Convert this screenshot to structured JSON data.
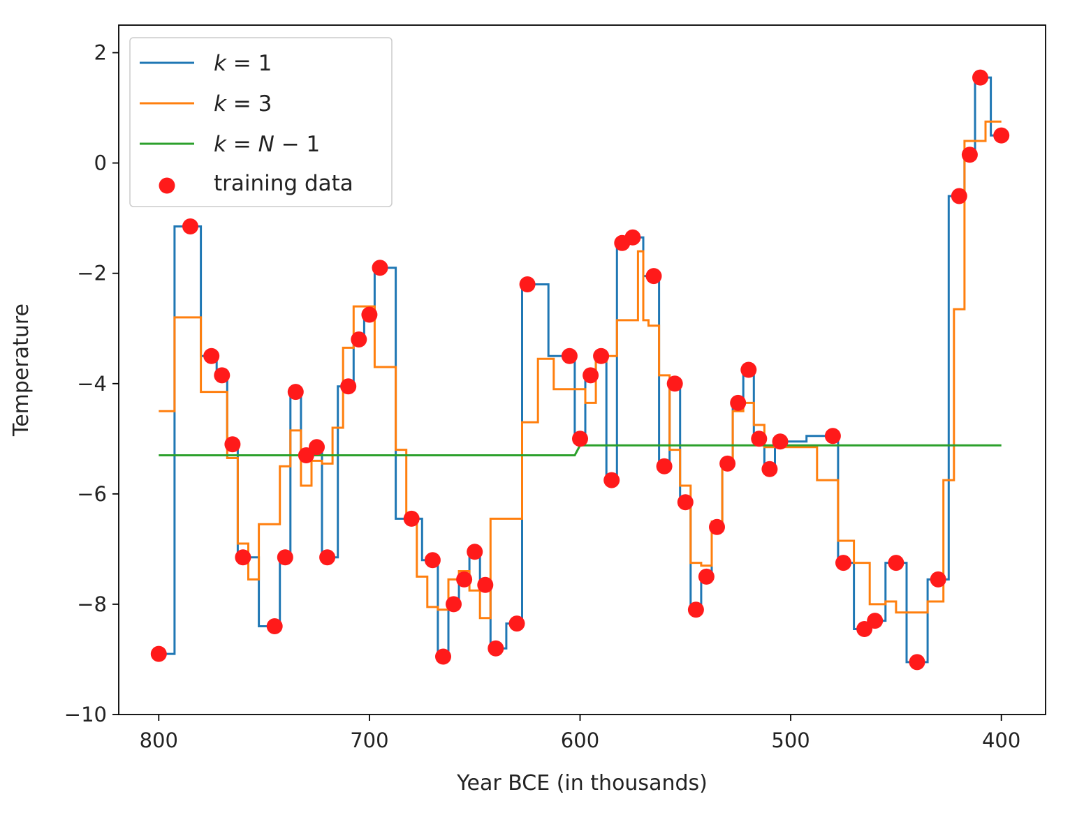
{
  "chart_data": {
    "type": "line",
    "xlabel": "Year BCE (in thousands)",
    "ylabel": "Temperature",
    "xlim": [
      819,
      379
    ],
    "ylim": [
      -10,
      2.5
    ],
    "x_reversed": true,
    "xticks": [
      800,
      700,
      600,
      500,
      400
    ],
    "xtick_labels": [
      "800",
      "700",
      "600",
      "500",
      "400"
    ],
    "yticks": [
      2,
      0,
      -2,
      -4,
      -6,
      -8,
      -10
    ],
    "ytick_labels": [
      "2",
      "0",
      "−2",
      "−4",
      "−6",
      "−8",
      "−10"
    ],
    "legend_position": "top-left",
    "legend": [
      {
        "prefix": "k",
        "eq": " = ",
        "suffix": "1",
        "color": "#1f77b4",
        "marker": "line"
      },
      {
        "prefix": "k",
        "eq": " = ",
        "suffix": "3",
        "color": "#ff7f0e",
        "marker": "line"
      },
      {
        "prefix": "k",
        "eq": " = ",
        "suffix": "N − 1",
        "color": "#2ca02c",
        "marker": "line"
      },
      {
        "prefix": "",
        "eq": "",
        "suffix": "training data",
        "color": "#ff1a1a",
        "marker": "dot"
      }
    ],
    "training_data": {
      "name": "training data",
      "color": "#ff1a1a",
      "x": [
        800,
        785,
        775,
        770,
        765,
        760,
        745,
        740,
        735,
        730,
        725,
        720,
        710,
        705,
        700,
        695,
        680,
        670,
        665,
        660,
        655,
        650,
        645,
        640,
        630,
        625,
        605,
        600,
        595,
        590,
        585,
        580,
        575,
        565,
        560,
        555,
        550,
        545,
        540,
        535,
        530,
        525,
        520,
        515,
        510,
        505,
        480,
        475,
        465,
        460,
        450,
        440,
        430,
        420,
        415,
        410,
        400
      ],
      "y": [
        -8.9,
        -1.15,
        -3.5,
        -3.85,
        -5.1,
        -7.15,
        -8.4,
        -7.15,
        -4.15,
        -5.3,
        -5.15,
        -7.15,
        -4.05,
        -3.2,
        -2.75,
        -1.9,
        -6.45,
        -7.2,
        -8.95,
        -8.0,
        -7.55,
        -7.05,
        -7.65,
        -8.8,
        -8.35,
        -2.2,
        -3.5,
        -5.0,
        -3.85,
        -3.5,
        -5.75,
        -1.45,
        -1.35,
        -2.05,
        -5.5,
        -4.0,
        -6.15,
        -8.1,
        -7.5,
        -6.6,
        -5.45,
        -4.35,
        -3.75,
        -5.0,
        -5.55,
        -5.05,
        -4.95,
        -7.25,
        -8.45,
        -8.3,
        -7.25,
        -9.05,
        -7.55,
        -0.6,
        0.15,
        1.55,
        0.5
      ]
    },
    "series": [
      {
        "name": "k = 1",
        "color": "#1f77b4",
        "x": [
          800,
          792.5,
          792.5,
          780,
          780,
          772.5,
          772.5,
          767.5,
          767.5,
          762.5,
          762.5,
          752.5,
          752.5,
          742.5,
          742.5,
          737.5,
          737.5,
          732.5,
          732.5,
          727.5,
          727.5,
          722.5,
          722.5,
          715,
          715,
          707.5,
          707.5,
          702.5,
          702.5,
          697.5,
          697.5,
          687.5,
          687.5,
          675,
          675,
          667.5,
          667.5,
          662.5,
          662.5,
          657.5,
          657.5,
          652.5,
          652.5,
          647.5,
          647.5,
          642.5,
          642.5,
          635,
          635,
          627.5,
          627.5,
          615,
          615,
          602.5,
          602.5,
          597.5,
          597.5,
          592.5,
          592.5,
          587.5,
          587.5,
          582.5,
          582.5,
          577.5,
          577.5,
          570,
          570,
          562.5,
          562.5,
          557.5,
          557.5,
          552.5,
          552.5,
          547.5,
          547.5,
          542.5,
          542.5,
          537.5,
          537.5,
          532.5,
          532.5,
          527.5,
          527.5,
          522.5,
          522.5,
          517.5,
          517.5,
          512.5,
          512.5,
          507.5,
          507.5,
          492.5,
          492.5,
          477.5,
          477.5,
          470,
          470,
          462.5,
          462.5,
          455,
          455,
          445,
          445,
          435,
          435,
          425,
          425,
          417.5,
          417.5,
          412.5,
          412.5,
          405,
          405,
          400
        ],
        "y": [
          -8.9,
          -8.9,
          -1.15,
          -1.15,
          -3.5,
          -3.5,
          -3.85,
          -3.85,
          -5.1,
          -5.1,
          -7.15,
          -7.15,
          -8.4,
          -8.4,
          -7.15,
          -7.15,
          -4.15,
          -4.15,
          -5.3,
          -5.3,
          -5.15,
          -5.15,
          -7.15,
          -7.15,
          -4.05,
          -4.05,
          -3.2,
          -3.2,
          -2.75,
          -2.75,
          -1.9,
          -1.9,
          -6.45,
          -6.45,
          -7.2,
          -7.2,
          -8.95,
          -8.95,
          -8.0,
          -8.0,
          -7.55,
          -7.55,
          -7.05,
          -7.05,
          -7.65,
          -7.65,
          -8.8,
          -8.8,
          -8.35,
          -8.35,
          -2.2,
          -2.2,
          -3.5,
          -3.5,
          -5.0,
          -5.0,
          -3.85,
          -3.85,
          -3.5,
          -3.5,
          -5.75,
          -5.75,
          -1.45,
          -1.45,
          -1.35,
          -1.35,
          -2.05,
          -2.05,
          -5.5,
          -5.5,
          -4.0,
          -4.0,
          -6.15,
          -6.15,
          -8.1,
          -8.1,
          -7.5,
          -7.5,
          -6.6,
          -6.6,
          -5.45,
          -5.45,
          -4.35,
          -4.35,
          -3.75,
          -3.75,
          -5.0,
          -5.0,
          -5.55,
          -5.55,
          -5.05,
          -5.05,
          -4.95,
          -4.95,
          -7.25,
          -7.25,
          -8.45,
          -8.45,
          -8.3,
          -8.3,
          -7.25,
          -7.25,
          -9.05,
          -9.05,
          -7.55,
          -7.55,
          -0.6,
          -0.6,
          0.15,
          0.15,
          1.55,
          1.55,
          0.5,
          0.5
        ]
      },
      {
        "name": "k = 3",
        "color": "#ff7f0e",
        "x": [
          800,
          792.5,
          792.5,
          780,
          780,
          772.5,
          772.5,
          767.5,
          767.5,
          762.5,
          762.5,
          757.5,
          757.5,
          752.5,
          752.5,
          747.5,
          747.5,
          742.5,
          742.5,
          737.5,
          737.5,
          732.5,
          732.5,
          727.5,
          727.5,
          722.5,
          722.5,
          717.5,
          717.5,
          712.5,
          712.5,
          707.5,
          707.5,
          702.5,
          702.5,
          697.5,
          697.5,
          687.5,
          687.5,
          682.5,
          682.5,
          677.5,
          677.5,
          672.5,
          672.5,
          667.5,
          667.5,
          662.5,
          662.5,
          657.5,
          657.5,
          652.5,
          652.5,
          647.5,
          647.5,
          642.5,
          642.5,
          635,
          635,
          627.5,
          627.5,
          620,
          620,
          612.5,
          612.5,
          607.5,
          607.5,
          602.5,
          602.5,
          597.5,
          597.5,
          592.5,
          592.5,
          587.5,
          587.5,
          582.5,
          582.5,
          577.5,
          577.5,
          572.5,
          572.5,
          570,
          570,
          567.5,
          567.5,
          562.5,
          562.5,
          557.5,
          557.5,
          552.5,
          552.5,
          547.5,
          547.5,
          542.5,
          542.5,
          537.5,
          537.5,
          532.5,
          532.5,
          527.5,
          527.5,
          522.5,
          522.5,
          517.5,
          517.5,
          512.5,
          512.5,
          507.5,
          507.5,
          492.5,
          492.5,
          487.5,
          487.5,
          477.5,
          477.5,
          470,
          470,
          462.5,
          462.5,
          455,
          455,
          450,
          450,
          445,
          445,
          435,
          435,
          427.5,
          427.5,
          422.5,
          422.5,
          417.5,
          417.5,
          412.5,
          412.5,
          407.5,
          407.5,
          400
        ],
        "y": [
          -4.5,
          -4.5,
          -2.8,
          -2.8,
          -4.15,
          -4.15,
          -4.15,
          -4.15,
          -5.35,
          -5.35,
          -6.9,
          -6.9,
          -7.55,
          -7.55,
          -6.55,
          -6.55,
          -6.55,
          -6.55,
          -5.5,
          -5.5,
          -4.85,
          -4.85,
          -5.85,
          -5.85,
          -5.4,
          -5.4,
          -5.45,
          -5.45,
          -4.8,
          -4.8,
          -3.35,
          -3.35,
          -2.6,
          -2.6,
          -2.6,
          -2.6,
          -3.7,
          -3.7,
          -5.2,
          -5.2,
          -6.45,
          -6.45,
          -7.5,
          -7.5,
          -8.05,
          -8.05,
          -8.1,
          -8.1,
          -7.55,
          -7.55,
          -7.4,
          -7.4,
          -7.75,
          -7.75,
          -8.25,
          -8.25,
          -6.45,
          -6.45,
          -6.45,
          -6.45,
          -4.7,
          -4.7,
          -3.55,
          -3.55,
          -4.1,
          -4.1,
          -4.1,
          -4.1,
          -4.1,
          -4.1,
          -4.35,
          -4.35,
          -3.6,
          -3.6,
          -3.5,
          -3.5,
          -2.85,
          -2.85,
          -2.85,
          -2.85,
          -1.6,
          -1.6,
          -2.85,
          -2.85,
          -2.95,
          -2.95,
          -3.85,
          -3.85,
          -5.2,
          -5.2,
          -5.85,
          -5.85,
          -7.25,
          -7.25,
          -7.3,
          -7.3,
          -6.5,
          -6.5,
          -5.45,
          -5.45,
          -4.5,
          -4.5,
          -4.35,
          -4.35,
          -4.75,
          -4.75,
          -5.15,
          -5.15,
          -5.15,
          -5.15,
          -5.15,
          -5.15,
          -5.75,
          -5.75,
          -6.85,
          -6.85,
          -7.25,
          -7.25,
          -8.0,
          -8.0,
          -7.95,
          -7.95,
          -8.15,
          -8.15,
          -8.15,
          -8.15,
          -7.95,
          -7.95,
          -5.75,
          -5.75,
          -2.65,
          -2.65,
          0.4,
          0.4,
          0.4,
          0.4,
          0.75,
          0.75
        ]
      },
      {
        "name": "k = N − 1",
        "color": "#2ca02c",
        "x": [
          800,
          602.5,
          600,
          400
        ],
        "y": [
          -5.3,
          -5.3,
          -5.12,
          -5.12
        ]
      }
    ]
  }
}
